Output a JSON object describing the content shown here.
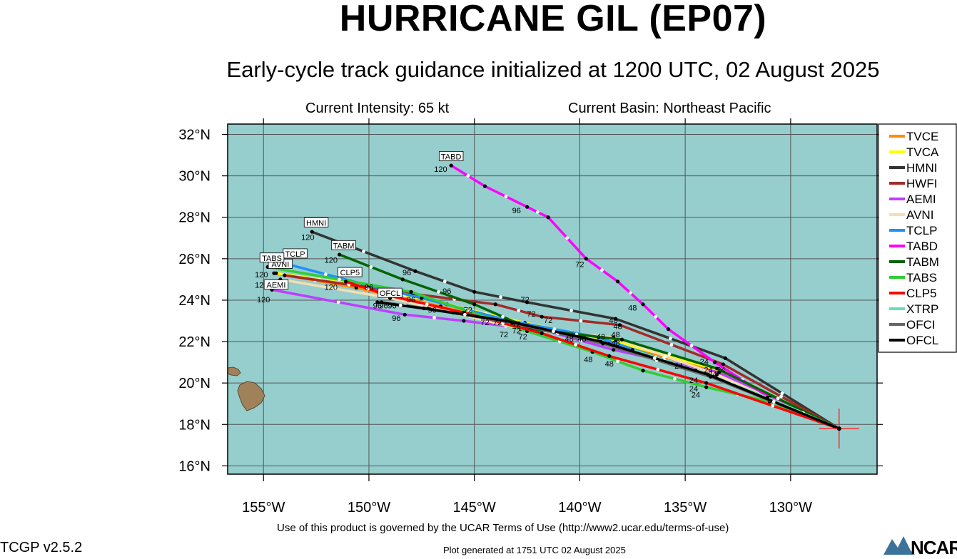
{
  "title": "HURRICANE GIL (EP07)",
  "subtitle": "Early-cycle track guidance initialized at 1200 UTC, 02 August 2025",
  "current_intensity": "Current Intensity: 65 kt",
  "current_basin": "Current Basin: Northeast Pacific",
  "footer": {
    "terms": "Use of this product is governed by the UCAR Terms of Use (http://www2.ucar.edu/terms-of-use)",
    "version": "TCGP v2.5.2",
    "generated": "Plot generated at 1751 UTC   02 August 2025",
    "logo": "NCAR"
  },
  "colors": {
    "ocean": "#96cdcd",
    "land": "#a0825a"
  },
  "map": {
    "lon_range": [
      -156.7,
      -125.9
    ],
    "lat_range": [
      15.6,
      32.5
    ],
    "lon_ticks": [
      {
        "value": -155,
        "label": "155°W"
      },
      {
        "value": -150,
        "label": "150°W"
      },
      {
        "value": -145,
        "label": "145°W"
      },
      {
        "value": -140,
        "label": "140°W"
      },
      {
        "value": -135,
        "label": "135°W"
      },
      {
        "value": -130,
        "label": "130°W"
      }
    ],
    "lat_ticks": [
      {
        "value": 16,
        "label": "16°N"
      },
      {
        "value": 18,
        "label": "18°N"
      },
      {
        "value": 20,
        "label": "20°N"
      },
      {
        "value": 22,
        "label": "22°N"
      },
      {
        "value": 24,
        "label": "24°N"
      },
      {
        "value": 26,
        "label": "26°N"
      },
      {
        "value": 28,
        "label": "28°N"
      },
      {
        "value": 30,
        "label": "30°N"
      },
      {
        "value": 32,
        "label": "32°N"
      }
    ],
    "storm_position": {
      "lon": -127.7,
      "lat": 17.8
    }
  },
  "legend": [
    {
      "name": "TVCE",
      "color": "#ff8c00"
    },
    {
      "name": "TVCA",
      "color": "#ffff00"
    },
    {
      "name": "HMNI",
      "color": "#333333"
    },
    {
      "name": "HWFI",
      "color": "#a52a2a"
    },
    {
      "name": "AEMI",
      "color": "#bf3eff"
    },
    {
      "name": "AVNI",
      "color": "#f5deb3"
    },
    {
      "name": "TCLP",
      "color": "#1e90ff"
    },
    {
      "name": "TABD",
      "color": "#ff00ff"
    },
    {
      "name": "TABM",
      "color": "#006400"
    },
    {
      "name": "TABS",
      "color": "#32cd32"
    },
    {
      "name": "CLP5",
      "color": "#ff0000"
    },
    {
      "name": "XTRP",
      "color": "#66e0b0"
    },
    {
      "name": "OFCI",
      "color": "#666666"
    },
    {
      "name": "OFCL",
      "color": "#000000"
    }
  ],
  "tracks": [
    {
      "name": "TVCE",
      "color": "#ff8c00",
      "points": [
        [
          -127.7,
          17.8
        ],
        [
          -133.4,
          20.6
        ],
        [
          -138.6,
          21.9
        ],
        [
          -142.9,
          22.8
        ],
        [
          -146.6,
          23.7
        ],
        [
          -150.6,
          24.6
        ],
        [
          -154.5,
          25.3
        ]
      ]
    },
    {
      "name": "TVCA",
      "color": "#ffff00",
      "points": [
        [
          -127.7,
          17.8
        ],
        [
          -133.3,
          20.6
        ],
        [
          -138.3,
          22.0
        ],
        [
          -142.6,
          22.9
        ],
        [
          -146.3,
          23.8
        ],
        [
          -150.3,
          24.7
        ],
        [
          -154.4,
          25.3
        ]
      ]
    },
    {
      "name": "HMNI",
      "color": "#333333",
      "points": [
        [
          -127.7,
          17.8
        ],
        [
          -133.1,
          21.2
        ],
        [
          -138.3,
          23.1
        ],
        [
          -142.5,
          23.9
        ],
        [
          -145.0,
          24.4
        ],
        [
          -147.8,
          25.4
        ],
        [
          -152.7,
          27.3
        ]
      ],
      "label": "HMNI",
      "label_pos": [
        -152.5,
        27.6
      ]
    },
    {
      "name": "HWFI",
      "color": "#a52a2a",
      "points": [
        [
          -127.7,
          17.8
        ],
        [
          -133.2,
          20.9
        ],
        [
          -138.1,
          22.8
        ],
        [
          -141.8,
          23.2
        ],
        [
          -144.0,
          23.8
        ],
        [
          -147.9,
          24.3
        ],
        [
          -154.0,
          25.2
        ]
      ]
    },
    {
      "name": "AEMI",
      "color": "#bf3eff",
      "points": [
        [
          -127.7,
          17.8
        ],
        [
          -133.4,
          20.5
        ],
        [
          -138.4,
          21.6
        ],
        [
          -141.5,
          22.5
        ],
        [
          -145.5,
          23.0
        ],
        [
          -148.3,
          23.3
        ],
        [
          -154.6,
          24.5
        ]
      ],
      "label": "AEMI",
      "label_pos": [
        -154.4,
        24.6
      ]
    },
    {
      "name": "AVNI",
      "color": "#f5deb3",
      "points": [
        [
          -127.7,
          17.8
        ],
        [
          -133.5,
          20.4
        ],
        [
          -138.4,
          22.2
        ],
        [
          -142.8,
          22.6
        ],
        [
          -146.0,
          23.4
        ],
        [
          -149.0,
          24.1
        ],
        [
          -154.2,
          25.0
        ]
      ],
      "label": "AVNI",
      "label_pos": [
        -154.2,
        25.6
      ]
    },
    {
      "name": "TCLP",
      "color": "#1e90ff",
      "points": [
        [
          -127.7,
          17.8
        ],
        [
          -133.7,
          20.3
        ],
        [
          -139.1,
          22.2
        ],
        [
          -143.3,
          23.0
        ],
        [
          -147.5,
          24.1
        ],
        [
          -150.0,
          24.7
        ],
        [
          -154.1,
          25.8
        ]
      ],
      "label": "TCLP",
      "label_pos": [
        -153.5,
        26.1
      ]
    },
    {
      "name": "TABD",
      "color": "#ff00ff",
      "points": [
        [
          -127.7,
          17.8
        ],
        [
          -131.0,
          19.3
        ],
        [
          -133.6,
          21.0
        ],
        [
          -135.8,
          22.6
        ],
        [
          -137.0,
          23.8
        ],
        [
          -138.2,
          24.9
        ],
        [
          -139.7,
          26.0
        ],
        [
          -141.5,
          28.0
        ],
        [
          -142.5,
          28.5
        ],
        [
          -144.5,
          29.5
        ],
        [
          -146.1,
          30.5
        ]
      ],
      "label": "TABD",
      "label_pos": [
        -146.1,
        30.8
      ]
    },
    {
      "name": "TABM",
      "color": "#006400",
      "points": [
        [
          -127.7,
          17.8
        ],
        [
          -133.5,
          20.7
        ],
        [
          -138.0,
          22.1
        ],
        [
          -142.3,
          22.6
        ],
        [
          -145.0,
          23.8
        ],
        [
          -148.4,
          25.0
        ],
        [
          -151.4,
          26.2
        ]
      ],
      "label": "TABM",
      "label_pos": [
        -151.2,
        26.5
      ]
    },
    {
      "name": "TABS",
      "color": "#32cd32",
      "points": [
        [
          -127.7,
          17.8
        ],
        [
          -131.0,
          19.1
        ],
        [
          -134.0,
          19.8
        ],
        [
          -137.0,
          20.6
        ],
        [
          -139.4,
          21.5
        ],
        [
          -142.5,
          22.5
        ],
        [
          -148.0,
          24.4
        ],
        [
          -154.8,
          25.6
        ]
      ],
      "label": "TABS",
      "label_pos": [
        -154.6,
        25.9
      ]
    },
    {
      "name": "CLP5",
      "color": "#ff0000",
      "points": [
        [
          -127.7,
          17.8
        ],
        [
          -134.0,
          20.0
        ],
        [
          -138.6,
          21.3
        ],
        [
          -141.8,
          22.4
        ],
        [
          -145.5,
          23.4
        ],
        [
          -149.0,
          24.2
        ],
        [
          -151.1,
          24.9
        ]
      ],
      "label": "CLP5",
      "label_pos": [
        -150.9,
        25.2
      ]
    },
    {
      "name": "XTRP",
      "color": "#66e0b0",
      "points": [
        [
          -127.7,
          17.8
        ],
        [
          -131.1,
          19.3
        ],
        [
          -134.5,
          20.6
        ],
        [
          -137.5,
          21.6
        ]
      ]
    },
    {
      "name": "OFCI",
      "color": "#666666",
      "points": [
        [
          -127.7,
          17.8
        ],
        [
          -133.8,
          20.3
        ],
        [
          -138.9,
          21.9
        ],
        [
          -143.2,
          22.9
        ],
        [
          -147.2,
          23.6
        ],
        [
          -149.4,
          23.9
        ]
      ]
    },
    {
      "name": "OFCL",
      "color": "#000000",
      "points": [
        [
          -127.7,
          17.8
        ],
        [
          -133.9,
          20.4
        ],
        [
          -139.0,
          22.0
        ],
        [
          -143.5,
          23.0
        ],
        [
          -147.4,
          23.6
        ],
        [
          -149.6,
          23.9
        ]
      ],
      "label": "OFCL",
      "label_pos": [
        -149.0,
        24.2
      ]
    }
  ],
  "forecast_hour_labels": [
    {
      "text": "120",
      "lon": -146.6,
      "lat": 30.2
    },
    {
      "text": "96",
      "lon": -143.0,
      "lat": 28.2
    },
    {
      "text": "72",
      "lon": -140.0,
      "lat": 25.6
    },
    {
      "text": "48",
      "lon": -137.5,
      "lat": 23.5
    },
    {
      "text": "120",
      "lon": -152.9,
      "lat": 26.9
    },
    {
      "text": "120",
      "lon": -151.8,
      "lat": 25.8
    },
    {
      "text": "120",
      "lon": -155.1,
      "lat": 25.1
    },
    {
      "text": "120",
      "lon": -155.1,
      "lat": 24.6
    },
    {
      "text": "120",
      "lon": -155.0,
      "lat": 23.9
    },
    {
      "text": "120",
      "lon": -151.8,
      "lat": 24.5
    },
    {
      "text": "96",
      "lon": -148.2,
      "lat": 25.2
    },
    {
      "text": "96",
      "lon": -150.0,
      "lat": 24.5
    },
    {
      "text": "96",
      "lon": -146.3,
      "lat": 24.3
    },
    {
      "text": "96",
      "lon": -148.0,
      "lat": 23.9
    },
    {
      "text": "96",
      "lon": -149.6,
      "lat": 23.6
    },
    {
      "text": "96",
      "lon": -149.3,
      "lat": 23.6
    },
    {
      "text": "96",
      "lon": -148.9,
      "lat": 23.6
    },
    {
      "text": "96",
      "lon": -147.0,
      "lat": 23.4
    },
    {
      "text": "96",
      "lon": -148.7,
      "lat": 23.0
    },
    {
      "text": "72",
      "lon": -145.3,
      "lat": 23.4
    },
    {
      "text": "72",
      "lon": -144.5,
      "lat": 22.8
    },
    {
      "text": "72",
      "lon": -143.9,
      "lat": 22.8
    },
    {
      "text": "72",
      "lon": -142.6,
      "lat": 23.9
    },
    {
      "text": "72",
      "lon": -142.3,
      "lat": 23.2
    },
    {
      "text": "72",
      "lon": -141.5,
      "lat": 22.9
    },
    {
      "text": "72",
      "lon": -143.0,
      "lat": 22.7
    },
    {
      "text": "72",
      "lon": -143.0,
      "lat": 22.4
    },
    {
      "text": "72",
      "lon": -143.6,
      "lat": 22.2
    },
    {
      "text": "72",
      "lon": -142.7,
      "lat": 22.1
    },
    {
      "text": "48",
      "lon": -138.4,
      "lat": 22.9
    },
    {
      "text": "48",
      "lon": -138.2,
      "lat": 22.6
    },
    {
      "text": "48",
      "lon": -138.3,
      "lat": 22.2
    },
    {
      "text": "48",
      "lon": -139.0,
      "lat": 22.1
    },
    {
      "text": "48",
      "lon": -139.9,
      "lat": 22.0
    },
    {
      "text": "48",
      "lon": -140.5,
      "lat": 22.0
    },
    {
      "text": "48",
      "lon": -138.3,
      "lat": 21.8
    },
    {
      "text": "48",
      "lon": -139.6,
      "lat": 21.0
    },
    {
      "text": "48",
      "lon": -138.6,
      "lat": 20.8
    },
    {
      "text": "24",
      "lon": -134.1,
      "lat": 20.9
    },
    {
      "text": "24",
      "lon": -135.3,
      "lat": 20.7
    },
    {
      "text": "24",
      "lon": -133.9,
      "lat": 20.5
    },
    {
      "text": "24",
      "lon": -133.3,
      "lat": 20.5
    },
    {
      "text": "24",
      "lon": -133.7,
      "lat": 20.3
    },
    {
      "text": "24",
      "lon": -134.6,
      "lat": 20.0
    },
    {
      "text": "24",
      "lon": -134.6,
      "lat": 19.6
    },
    {
      "text": "24",
      "lon": -134.5,
      "lat": 19.3
    }
  ]
}
